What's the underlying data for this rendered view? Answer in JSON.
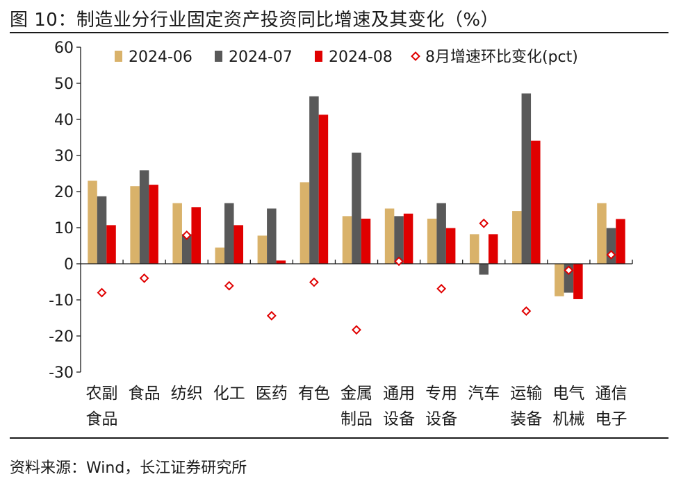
{
  "figure": {
    "title": "图 10：制造业分行业固定资产投资同比增速及其变化（%）",
    "source": "资料来源：Wind，长江证券研究所"
  },
  "chart_data": {
    "type": "bar",
    "title": "图 10：制造业分行业固定资产投资同比增速及其变化（%）",
    "xlabel": "",
    "ylabel": "",
    "ylim": [
      -30,
      60
    ],
    "yticks": [
      60,
      50,
      40,
      30,
      20,
      10,
      0,
      -10,
      -20,
      -30
    ],
    "grid": false,
    "legend_position": "top",
    "categories": [
      [
        "农副",
        "食品"
      ],
      [
        "食品"
      ],
      [
        "纺织"
      ],
      [
        "化工"
      ],
      [
        "医药"
      ],
      [
        "有色"
      ],
      [
        "金属",
        "制品"
      ],
      [
        "通用",
        "设备"
      ],
      [
        "专用",
        "设备"
      ],
      [
        "汽车"
      ],
      [
        "运输",
        "装备"
      ],
      [
        "电气",
        "机械"
      ],
      [
        "通信",
        "电子"
      ]
    ],
    "series": [
      {
        "name": "2024-06",
        "kind": "bar",
        "color": "#D9B26A",
        "values": [
          23.0,
          21.5,
          16.8,
          4.5,
          7.8,
          22.6,
          13.2,
          15.3,
          12.5,
          8.2,
          14.6,
          -9.0,
          16.8
        ]
      },
      {
        "name": "2024-07",
        "kind": "bar",
        "color": "#595959",
        "values": [
          18.7,
          25.9,
          8.2,
          16.8,
          15.3,
          46.4,
          30.8,
          13.2,
          16.8,
          -3.0,
          47.2,
          -8.0,
          9.9
        ]
      },
      {
        "name": "2024-08",
        "kind": "bar",
        "color": "#E00000",
        "values": [
          10.7,
          21.9,
          15.7,
          10.7,
          0.9,
          41.3,
          12.5,
          13.9,
          9.9,
          8.2,
          34.1,
          -9.8,
          12.4
        ]
      },
      {
        "name": "8月增速环比变化(pct)",
        "kind": "marker",
        "color": "#E00000",
        "values": [
          -8.0,
          -4.0,
          7.9,
          -6.1,
          -14.4,
          -5.1,
          -18.3,
          0.7,
          -6.9,
          11.2,
          -13.1,
          -1.8,
          2.5
        ]
      }
    ]
  }
}
